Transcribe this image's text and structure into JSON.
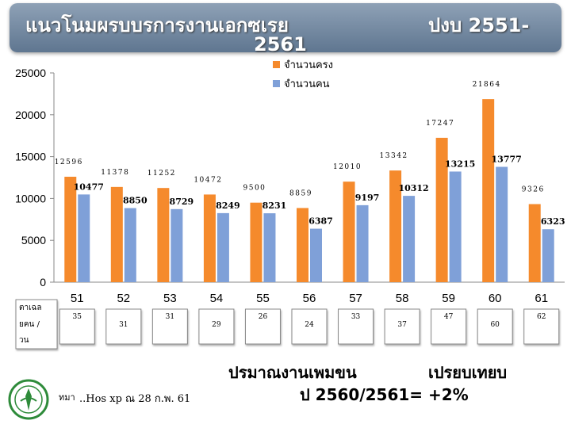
{
  "header": {
    "title_line1": "แนวโนมผรบบรการงานเอกซเรย",
    "title_line2": "2561",
    "title_right": "ปงบ  2551-"
  },
  "chart_data": {
    "type": "bar",
    "categories": [
      "51",
      "52",
      "53",
      "54",
      "55",
      "56",
      "57",
      "58",
      "59",
      "60",
      "61"
    ],
    "series": [
      {
        "name": "จำนวนครง",
        "color": "#f58a2c",
        "values": [
          12596,
          11378,
          11252,
          10472,
          9500,
          8859,
          12010,
          13342,
          17247,
          21864,
          9326
        ],
        "labels": [
          "12596",
          "11378",
          "11252",
          "10472",
          "9500",
          "8859",
          "12010",
          "13342",
          "17247",
          "21864",
          "9326"
        ]
      },
      {
        "name": "จำนวนคน",
        "color": "#7fa0d8",
        "values": [
          10477,
          8850,
          8729,
          8249,
          8231,
          6387,
          9197,
          10312,
          13215,
          13777,
          6323
        ],
        "labels": [
          "10477",
          "8850",
          "8729",
          "8249",
          "8231",
          "6387",
          "9197",
          "10312",
          "13215",
          "13777",
          "6323"
        ]
      }
    ],
    "yticks": [
      "0",
      "5000",
      "10000",
      "15000",
      "20000",
      "25000"
    ],
    "ylim": [
      0,
      25000
    ],
    "legend_position": "top-center",
    "grid": false,
    "per_day": {
      "label_line1": "ตาเฉล",
      "label_line2": "ยคน  /",
      "label_line3": "วน",
      "values": [
        "35",
        "31",
        "31",
        "29",
        "26",
        "24",
        "33",
        "37",
        "47",
        "60",
        "62"
      ]
    }
  },
  "summary": {
    "line1a": "ปรมาณงานเพมขน",
    "line1b": "เปรยบเทยบ",
    "line2": "ป  2560/2561=  +2%"
  },
  "footer": {
    "prefix": "ทมา",
    "note": "..Hos xp ณ 28 ก.พ. 61"
  }
}
